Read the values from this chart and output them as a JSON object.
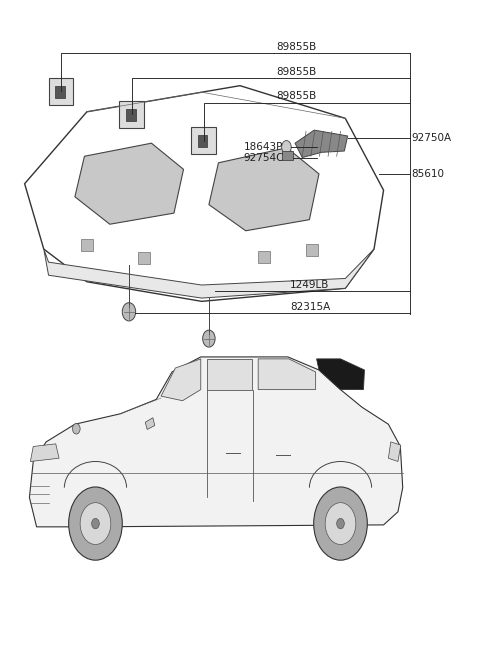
{
  "background_color": "#ffffff",
  "fig_width": 4.8,
  "fig_height": 6.55,
  "dpi": 100,
  "line_color": "#222222",
  "line_width": 0.65,
  "font_size": 7.5,
  "labels": {
    "89855B_1": "89855B",
    "89855B_2": "89855B",
    "89855B_3": "89855B",
    "92750A": "92750A",
    "18643P": "18643P",
    "92754C": "92754C",
    "85610": "85610",
    "1249LB": "1249LB",
    "82315A": "82315A"
  }
}
